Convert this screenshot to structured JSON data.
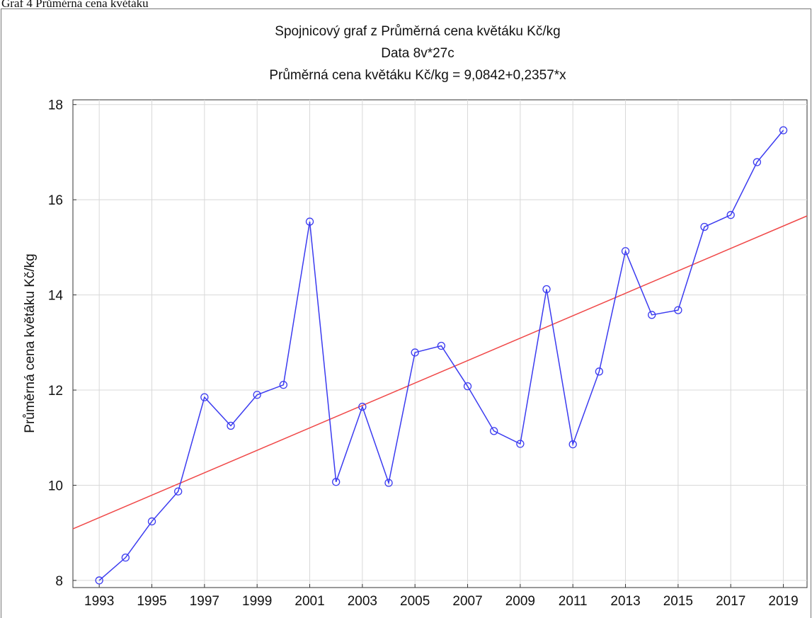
{
  "caption": "Graf 4 Průměrná cena květáku",
  "chart_data": {
    "type": "line",
    "title": "Spojnicový graf z Průměrná cena květáku Kč/kg",
    "subtitle": "Data 8v*27c",
    "equation": "Průměrná cena květáku Kč/kg = 9,0842+0,2357*x",
    "y_label": "Průměrná cena květáku Kč/kg",
    "x": [
      1993,
      1994,
      1995,
      1996,
      1997,
      1998,
      1999,
      2000,
      2001,
      2002,
      2003,
      2004,
      2005,
      2006,
      2007,
      2008,
      2009,
      2010,
      2011,
      2012,
      2013,
      2014,
      2015,
      2016,
      2017,
      2018,
      2019
    ],
    "series": [
      {
        "name": "Průměrná cena květáku Kč/kg",
        "color": "#3b3bf0",
        "values": [
          8.0,
          8.48,
          9.24,
          9.87,
          11.85,
          11.25,
          11.9,
          12.11,
          15.54,
          10.07,
          11.65,
          10.05,
          12.79,
          12.93,
          12.08,
          11.14,
          10.87,
          14.12,
          10.86,
          12.39,
          14.92,
          13.58,
          13.68,
          15.43,
          15.68,
          16.79,
          17.46
        ]
      }
    ],
    "trendline": {
      "intercept": 9.0842,
      "slope": 0.2357,
      "color": "#f04848"
    },
    "xlim": [
      1992,
      2019.9
    ],
    "xticks": [
      1993,
      1995,
      1997,
      1999,
      2001,
      2003,
      2005,
      2007,
      2009,
      2011,
      2013,
      2015,
      2017,
      2019
    ],
    "ylim": [
      7.85,
      18.1
    ],
    "yticks": [
      8,
      10,
      12,
      14,
      16,
      18
    ],
    "grid": true
  }
}
